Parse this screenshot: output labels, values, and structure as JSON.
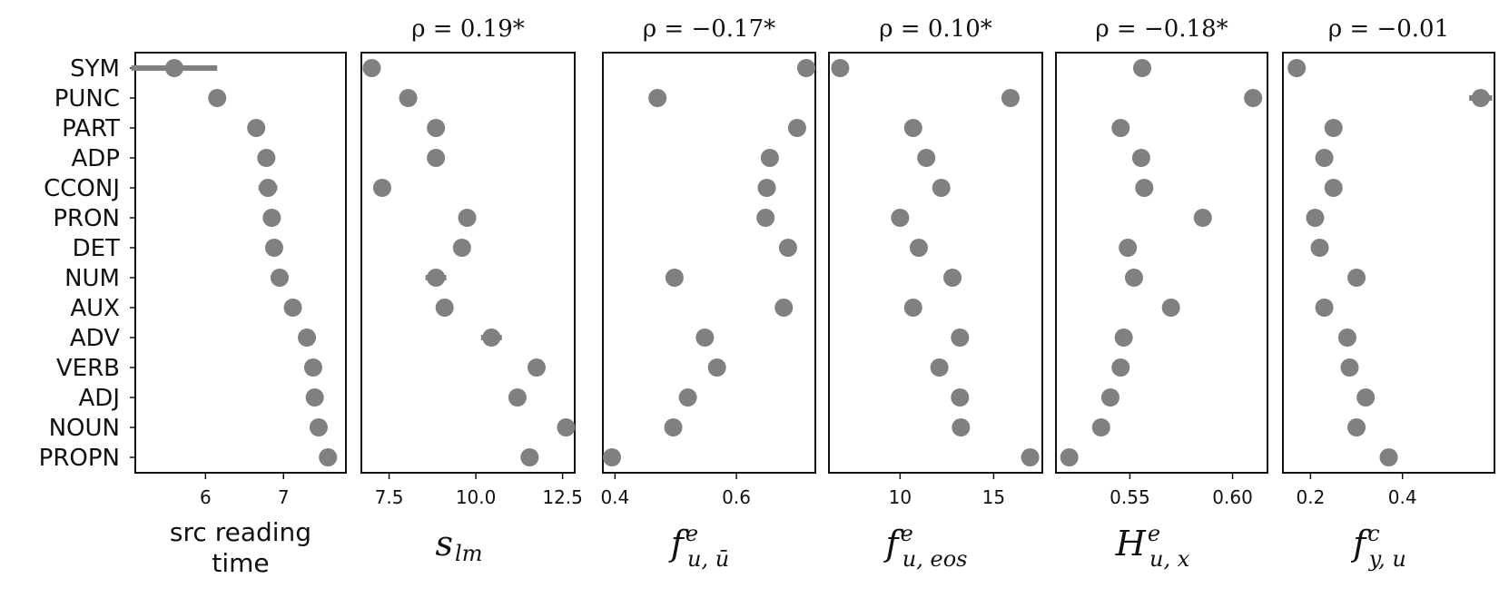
{
  "chart_data": {
    "type": "scatter",
    "categories": [
      "SYM",
      "PUNC",
      "PART",
      "ADP",
      "CCONJ",
      "PRON",
      "DET",
      "NUM",
      "AUX",
      "ADV",
      "VERB",
      "ADJ",
      "NOUN",
      "PROPN"
    ],
    "panels": [
      {
        "id": "src-reading-time",
        "xlabel": "src reading time",
        "xlabel_lines": [
          "src reading",
          "time"
        ],
        "annotation": "",
        "xlim": [
          5.1,
          7.8
        ],
        "xticks": [
          6,
          7
        ],
        "tick_labels": [
          "6",
          "7"
        ],
        "values": [
          5.6,
          6.15,
          6.65,
          6.78,
          6.8,
          6.85,
          6.88,
          6.95,
          7.12,
          7.3,
          7.38,
          7.4,
          7.45,
          7.57
        ],
        "errors": [
          0.55,
          0.0,
          0.0,
          0.0,
          0.12,
          0.0,
          0.0,
          0.08,
          0.08,
          0.0,
          0.0,
          0.0,
          0.0,
          0.0
        ]
      },
      {
        "id": "s-lm",
        "xlabel": "s_lm",
        "xlabel_main": "s",
        "xlabel_sub": "lm",
        "annotation": "ρ = 0.19*",
        "xlim": [
          6.7,
          12.85
        ],
        "xticks": [
          7.5,
          10.0,
          12.5
        ],
        "tick_labels": [
          "7.5",
          "10.0",
          "12.5"
        ],
        "values": [
          7.0,
          8.05,
          8.85,
          8.85,
          7.3,
          9.75,
          9.6,
          8.85,
          9.1,
          10.45,
          11.75,
          11.2,
          12.6,
          11.55
        ],
        "errors": [
          0.0,
          0.0,
          0.0,
          0.0,
          0.0,
          0.0,
          0.0,
          0.3,
          0.0,
          0.3,
          0.0,
          0.0,
          0.0,
          0.15
        ]
      },
      {
        "id": "f-e-u-ubar",
        "xlabel": "f^e_{u,ū}",
        "xlabel_main": "f",
        "xlabel_sup": "e",
        "xlabel_sub": "u, ū",
        "annotation": "ρ = −0.17*",
        "xlim": [
          0.38,
          0.73
        ],
        "xticks": [
          0.4,
          0.6
        ],
        "tick_labels": [
          "0.4",
          "0.6"
        ],
        "values": [
          0.715,
          0.47,
          0.7,
          0.655,
          0.65,
          0.648,
          0.685,
          0.498,
          0.678,
          0.548,
          0.568,
          0.52,
          0.496,
          0.395
        ],
        "errors": [
          0,
          0,
          0,
          0,
          0,
          0,
          0,
          0,
          0,
          0,
          0,
          0,
          0,
          0
        ]
      },
      {
        "id": "f-e-u-eos",
        "xlabel": "f^e_{u,eos}",
        "xlabel_main": "f",
        "xlabel_sup": "e",
        "xlabel_sub": "u, eos",
        "annotation": "ρ = 0.10*",
        "xlim": [
          6.2,
          17.6
        ],
        "xticks": [
          10,
          15
        ],
        "tick_labels": [
          "10",
          "15"
        ],
        "values": [
          6.8,
          15.9,
          10.7,
          11.4,
          12.2,
          10.0,
          11.0,
          12.8,
          10.7,
          13.2,
          12.1,
          13.2,
          13.25,
          16.95
        ],
        "errors": [
          0,
          0,
          0,
          0,
          0,
          0,
          0,
          0.4,
          0,
          0,
          0,
          0,
          0,
          0
        ]
      },
      {
        "id": "H-e-u-x",
        "xlabel": "H^e_{u,x}",
        "xlabel_main": "H",
        "xlabel_sup": "e",
        "xlabel_sub": "u, x",
        "annotation": "ρ = −0.18*",
        "xlim": [
          0.514,
          0.617
        ],
        "xticks": [
          0.55,
          0.6
        ],
        "tick_labels": [
          "0.55",
          "0.60"
        ],
        "values": [
          0.556,
          0.61,
          0.5455,
          0.5555,
          0.557,
          0.5855,
          0.549,
          0.552,
          0.57,
          0.547,
          0.5455,
          0.5405,
          0.536,
          0.5205
        ],
        "errors": [
          0,
          0,
          0,
          0,
          0,
          0,
          0,
          0,
          0,
          0,
          0,
          0,
          0,
          0
        ]
      },
      {
        "id": "f-c-y-u",
        "xlabel": "f^c_{y,u}",
        "xlabel_main": "f",
        "xlabel_sup": "c",
        "xlabel_sub": "y, u",
        "annotation": "ρ = −0.01",
        "xlim": [
          0.14,
          0.6
        ],
        "xticks": [
          0.2,
          0.4
        ],
        "tick_labels": [
          "0.2",
          "0.4"
        ],
        "values": [
          0.17,
          0.57,
          0.25,
          0.23,
          0.25,
          0.21,
          0.22,
          0.3,
          0.23,
          0.28,
          0.285,
          0.32,
          0.3,
          0.37
        ],
        "errors": [
          0,
          0.025,
          0,
          0,
          0,
          0,
          0,
          0,
          0,
          0,
          0,
          0,
          0,
          0
        ]
      }
    ],
    "grid": false,
    "legend": "none",
    "colors": {
      "marker": "#808080",
      "axes": "#111111"
    }
  }
}
